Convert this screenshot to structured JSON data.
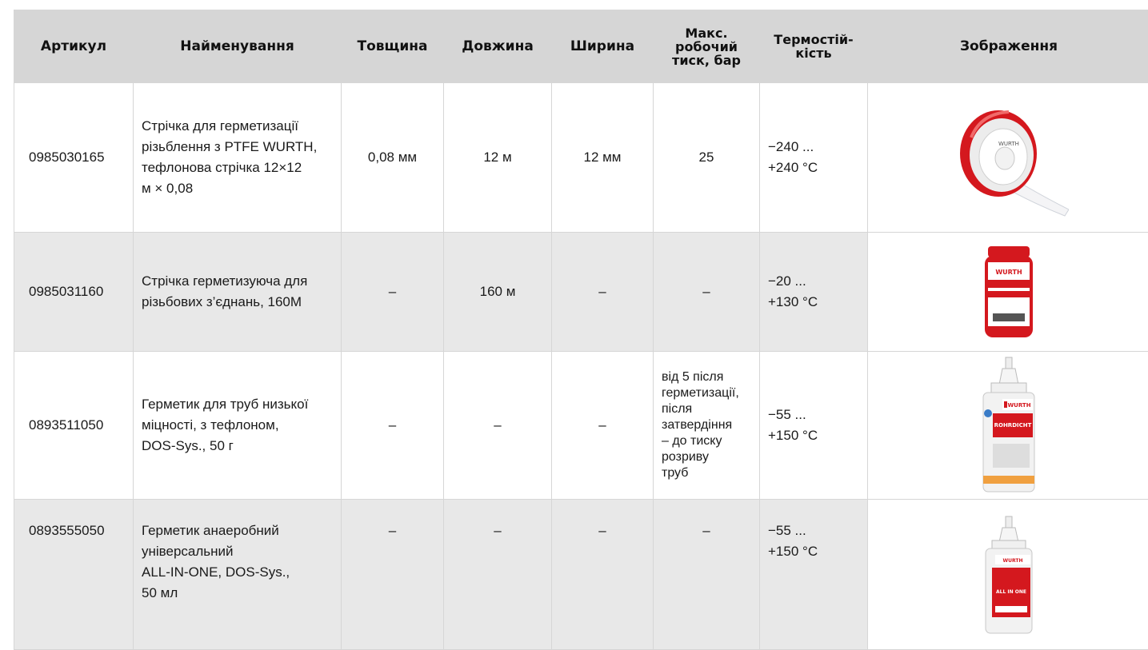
{
  "columns": [
    "Артикул",
    "Найменування",
    "Товщина",
    "Довжина",
    "Ширина",
    "Макс. робочий тиск, бар",
    "Термостій-кість",
    "Зображення"
  ],
  "header": {
    "col1": "Артикул",
    "col2": "Найменування",
    "col3": "Товщина",
    "col4": "Довжина",
    "col5": "Ширина",
    "col6_l1": "Макс.",
    "col6_l2": "робочий",
    "col6_l3": "тиск, бар",
    "col7_l1": "Термостій-",
    "col7_l2": "кість",
    "col8": "Зображення"
  },
  "rows": [
    {
      "sku": "0985030165",
      "name_lines": [
        "Стрічка для герметизації",
        "різьблення з PTFE WURTH,",
        "тефлонова стрічка 12×12",
        "м × 0,08"
      ],
      "thickness": "0,08 мм",
      "length": "12 м",
      "width": "12 мм",
      "pressure": "25",
      "temp_l1": "−240 ...",
      "temp_l2": "+240 °С",
      "image": "ptfe-tape-roll"
    },
    {
      "sku": "0985031160",
      "name_lines": [
        "Стрічка герметизуюча для",
        "різьбових з’єднань, 160M"
      ],
      "thickness": "–",
      "length": "160 м",
      "width": "–",
      "pressure": "–",
      "temp_l1": "−20 ...",
      "temp_l2": "+130 °С",
      "image": "thread-sealing-cord-container"
    },
    {
      "sku": "0893511050",
      "name_lines": [
        "Герметик для труб низької",
        "міцності, з тефлоном,",
        "DOS-Sys., 50 г"
      ],
      "thickness": "–",
      "length": "–",
      "width": "–",
      "pressure_lines": [
        "від 5 після",
        "герметизації,",
        "після",
        "затвердіння",
        "– до тиску",
        "розриву",
        "труб"
      ],
      "temp_l1": "−55 ...",
      "temp_l2": "+150 °С",
      "image": "sealant-bottle"
    },
    {
      "sku": "0893555050",
      "name_lines": [
        "Герметик анаеробний",
        "універсальний",
        "ALL-IN-ONE, DOS-Sys.,",
        "50 мл"
      ],
      "thickness": "–",
      "length": "–",
      "width": "–",
      "pressure": "–",
      "temp_l1": "−55 ...",
      "temp_l2": "+150 °С",
      "image": "anaerobic-sealant-bottle"
    }
  ],
  "product_labels": {
    "brand": "WURTH",
    "bottle3_label": "ROHRDICHT",
    "bottle4_label": "ALL IN ONE"
  },
  "colors": {
    "header_bg": "#d6d6d6",
    "shaded_row_bg": "#e8e8e8",
    "brand_red": "#d4181e"
  }
}
